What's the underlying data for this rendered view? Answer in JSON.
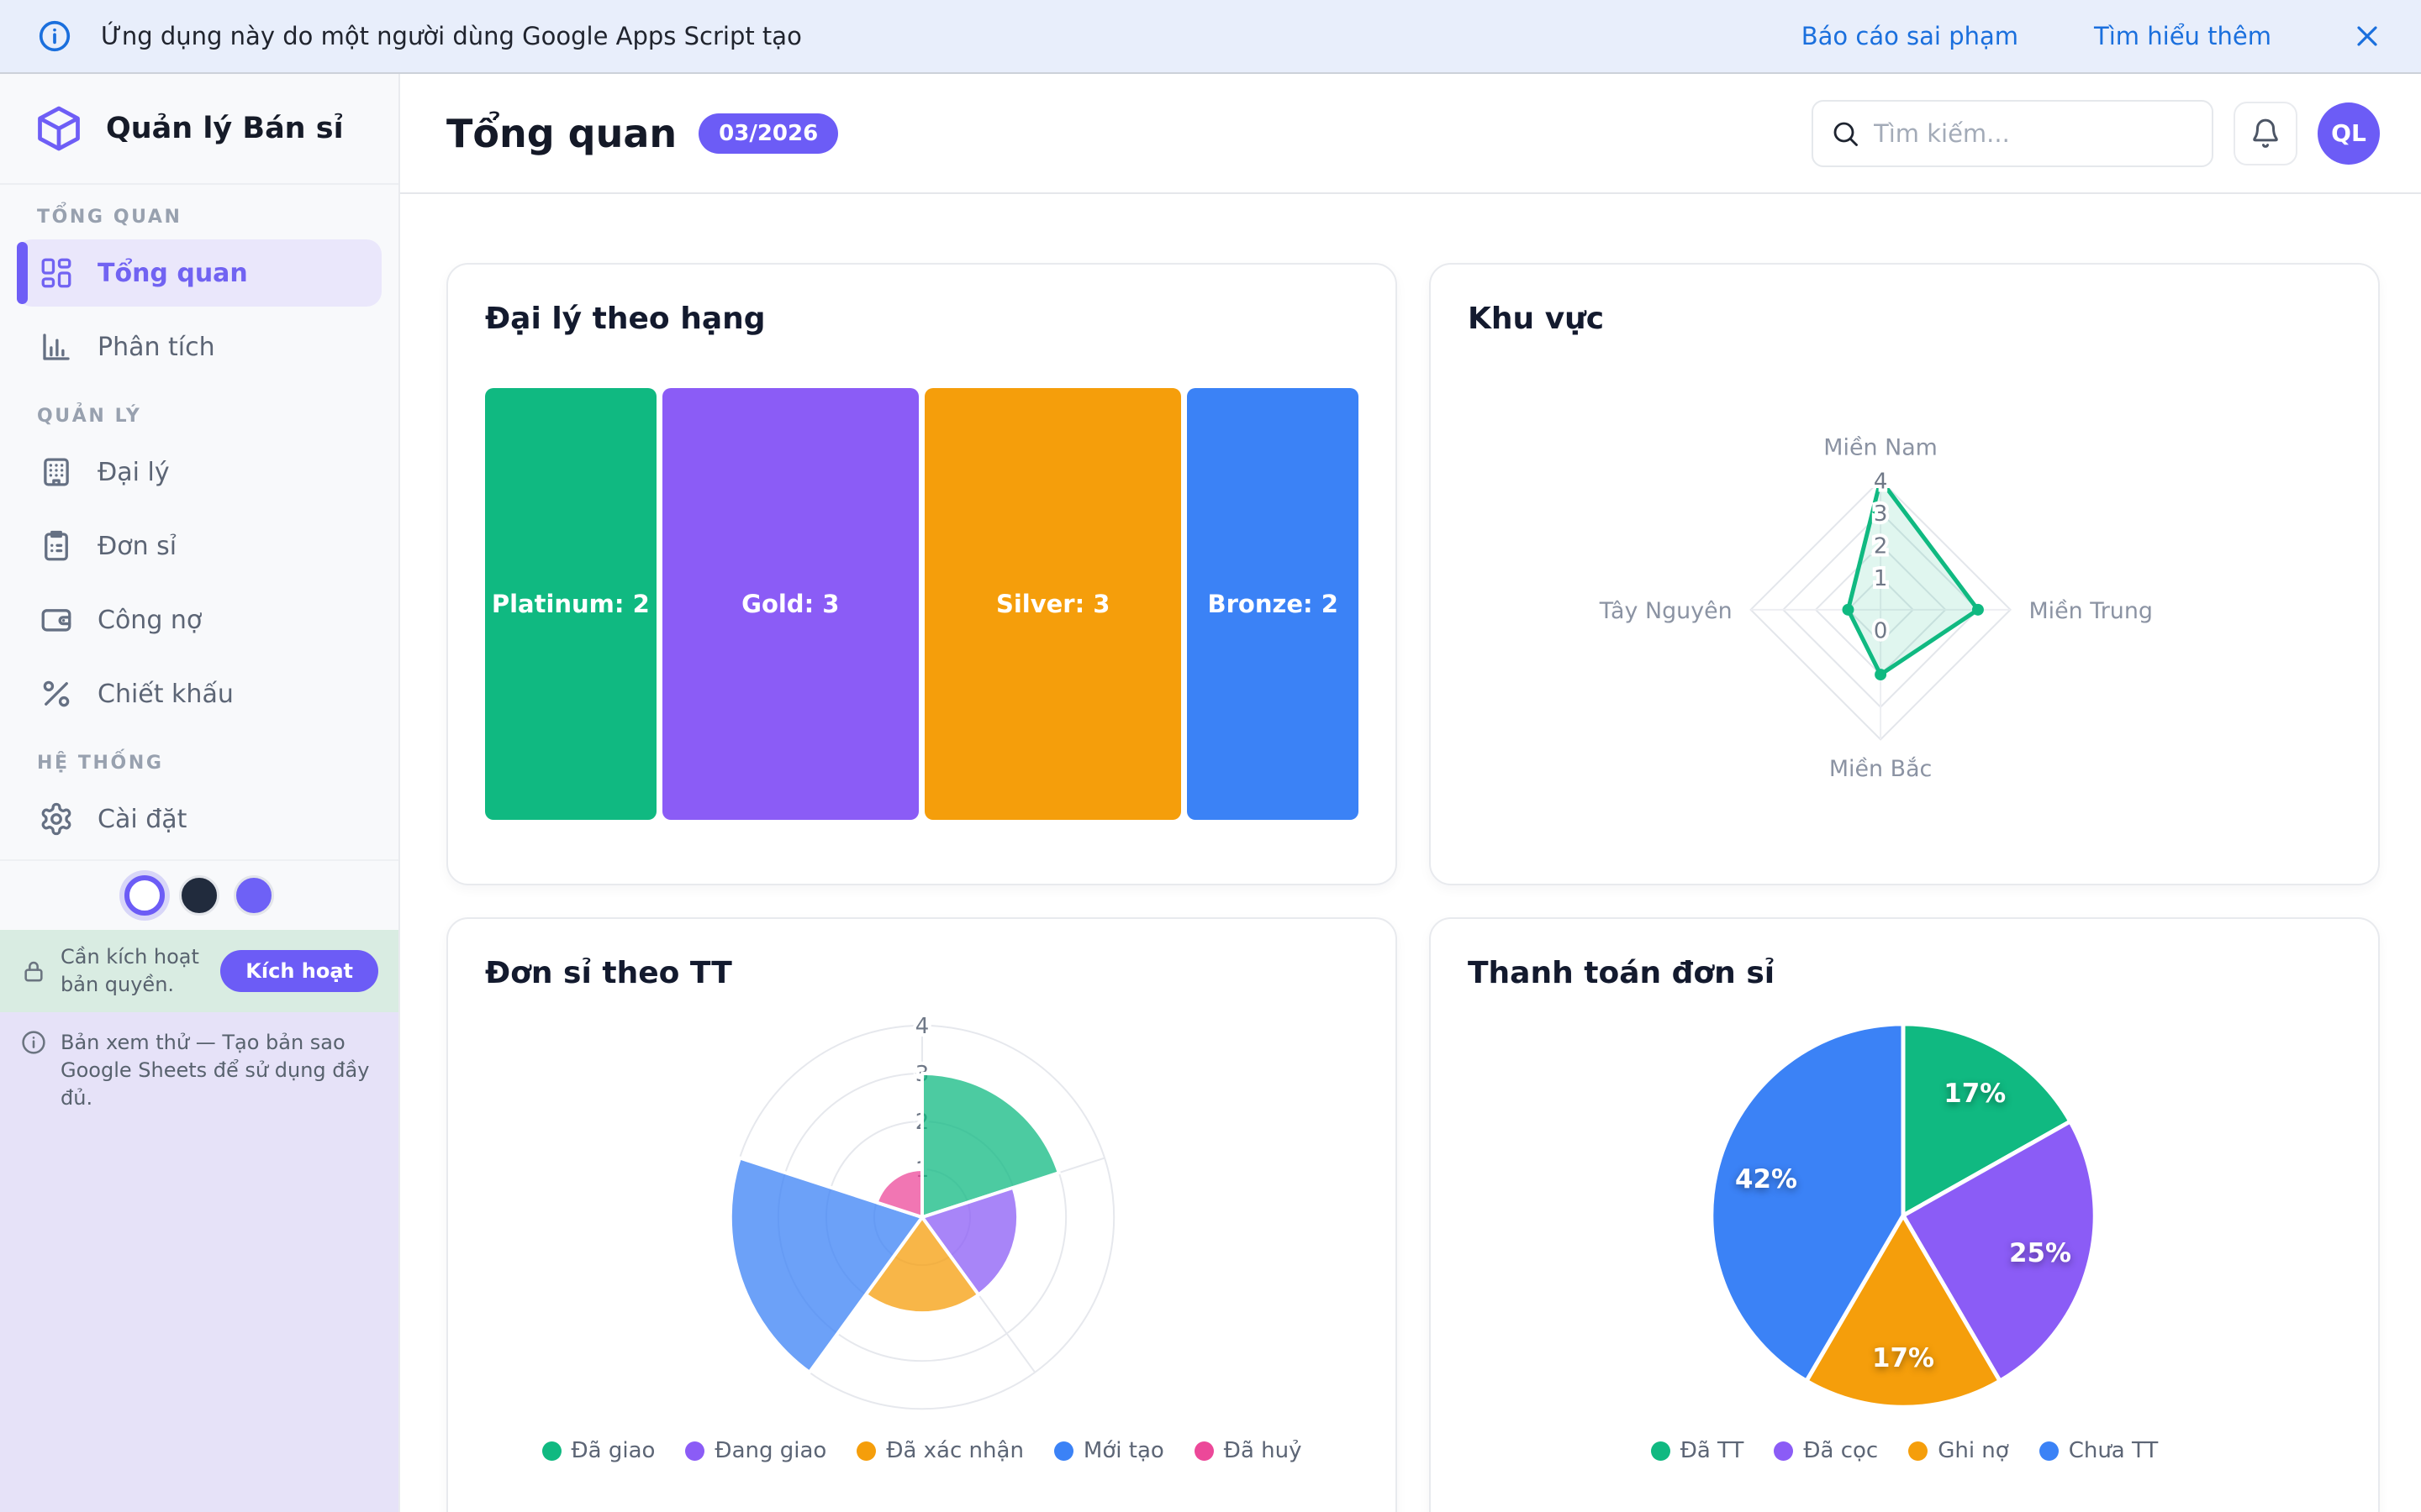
{
  "banner": {
    "message": "Ứng dụng này do một người dùng Google Apps Script tạo",
    "report_link": "Báo cáo sai phạm",
    "learn_link": "Tìm hiểu thêm"
  },
  "sidebar": {
    "app_title": "Quản lý Bán sỉ",
    "sections": [
      {
        "label": "TỔNG QUAN",
        "items": [
          {
            "key": "tong-quan",
            "label": "Tổng quan",
            "icon": "dashboard-icon",
            "active": true
          },
          {
            "key": "phan-tich",
            "label": "Phân tích",
            "icon": "bar-chart-icon",
            "active": false
          }
        ]
      },
      {
        "label": "QUẢN LÝ",
        "items": [
          {
            "key": "dai-ly",
            "label": "Đại lý",
            "icon": "building-icon",
            "active": false
          },
          {
            "key": "don-si",
            "label": "Đơn sỉ",
            "icon": "clipboard-icon",
            "active": false
          },
          {
            "key": "cong-no",
            "label": "Công nợ",
            "icon": "wallet-icon",
            "active": false
          },
          {
            "key": "chiet-khau",
            "label": "Chiết khấu",
            "icon": "percent-icon",
            "active": false
          }
        ]
      },
      {
        "label": "HỆ THỐNG",
        "items": [
          {
            "key": "cai-dat",
            "label": "Cài đặt",
            "icon": "gear-icon",
            "active": false
          }
        ]
      }
    ],
    "theme_swatches": [
      {
        "name": "light",
        "color": "#ffffff",
        "selected": true
      },
      {
        "name": "dark",
        "color": "#212b3d",
        "selected": false
      },
      {
        "name": "purple",
        "color": "#6e61f6",
        "selected": false
      }
    ],
    "license_banner": {
      "text": "Cần kích hoạt bản quyền.",
      "button_label": "Kích hoạt"
    },
    "preview_banner": {
      "text": "Bản xem thử — Tạo bản sao Google Sheets để sử dụng đầy đủ."
    }
  },
  "header": {
    "title": "Tổng quan",
    "period_badge": "03/2026",
    "search_placeholder": "Tìm kiếm...",
    "avatar_initials": "QL"
  },
  "colors": {
    "accent": "#6c5cf6",
    "link_blue": "#1a6fdd",
    "green": "#10b981",
    "purple": "#8b5cf6",
    "orange": "#f59e0b",
    "blue": "#3b82f6",
    "pink": "#ec4899"
  },
  "chart_data": [
    {
      "type": "treemap",
      "title": "Đại lý theo hạng",
      "items": [
        {
          "label": "Platinum",
          "value": 2,
          "color": "#10b981"
        },
        {
          "label": "Gold",
          "value": 3,
          "color": "#8b5cf6"
        },
        {
          "label": "Silver",
          "value": 3,
          "color": "#f59e0b"
        },
        {
          "label": "Bronze",
          "value": 2,
          "color": "#3b82f6"
        }
      ]
    },
    {
      "type": "radar",
      "title": "Khu vực",
      "categories": [
        "Miền Nam",
        "Miền Trung",
        "Miền Bắc",
        "Tây Nguyên"
      ],
      "values": [
        4,
        3,
        2,
        1
      ],
      "rlim": [
        0,
        4
      ],
      "ticks": [
        0,
        1,
        2,
        3,
        4
      ],
      "color": "#10b981",
      "grid": true
    },
    {
      "type": "polar_area",
      "title": "Đơn sỉ theo TT",
      "categories": [
        "Đã giao",
        "Đang giao",
        "Đã xác nhận",
        "Mới tạo",
        "Đã huỷ"
      ],
      "values": [
        3,
        2,
        2,
        4,
        1
      ],
      "rlim": [
        0,
        4
      ],
      "ticks": [
        1,
        2,
        3,
        4
      ],
      "colors": [
        "#10b981",
        "#8b5cf6",
        "#f59e0b",
        "#3b82f6",
        "#ec4899"
      ],
      "fill_opacity": 0.75,
      "legend_position": "bottom"
    },
    {
      "type": "pie",
      "title": "Thanh toán đơn sỉ",
      "categories": [
        "Đã TT",
        "Đã cọc",
        "Ghi nợ",
        "Chưa TT"
      ],
      "values": [
        17,
        25,
        17,
        42
      ],
      "labels": [
        "17%",
        "25%",
        "17%",
        "42%"
      ],
      "colors": [
        "#10b981",
        "#8b5cf6",
        "#f59e0b",
        "#3b82f6"
      ],
      "legend_position": "bottom"
    }
  ]
}
